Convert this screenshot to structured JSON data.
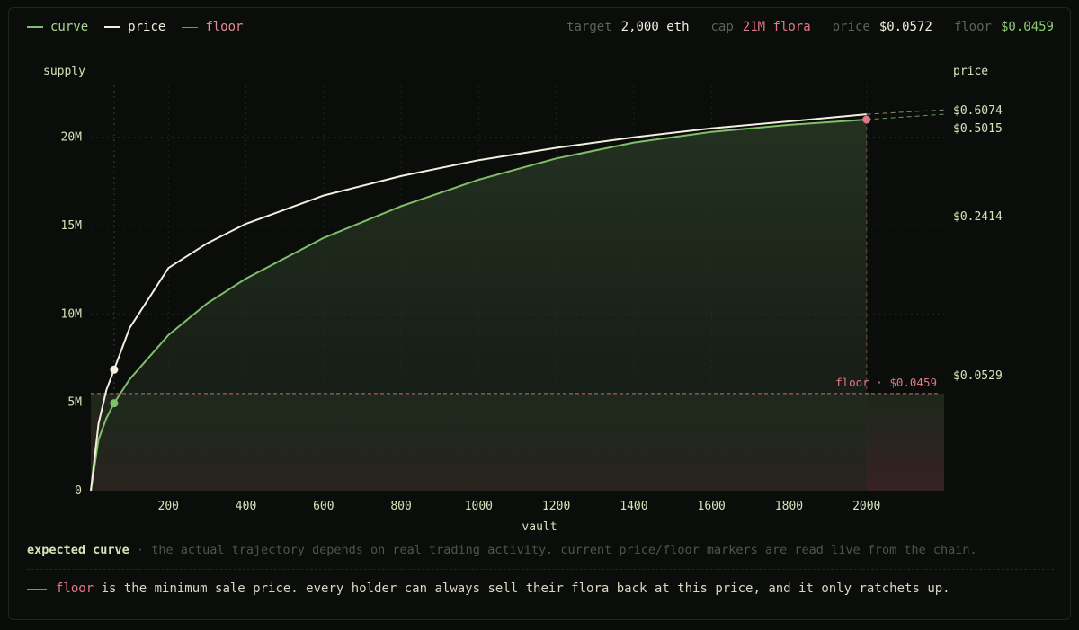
{
  "legend": {
    "curve": "curve",
    "price": "price",
    "floor": "floor"
  },
  "stats": {
    "target_label": "target",
    "target_value": "2,000 eth",
    "cap_label": "cap",
    "cap_value": "21M flora",
    "price_label": "price",
    "price_value": "$0.0572",
    "floor_label": "floor",
    "floor_value": "$0.0459"
  },
  "colors": {
    "curve": "#7fbf6a",
    "price": "#f2efe0",
    "floor": "#c86a7a",
    "axis_text": "#d6e3b8",
    "grid": "#1f251f"
  },
  "chart_data": {
    "type": "line",
    "xlabel": "vault",
    "ylabel": "supply",
    "y2label": "price",
    "xlim": [
      0,
      2200
    ],
    "ylim": [
      0,
      21000000
    ],
    "x_ticks": [
      200,
      400,
      600,
      800,
      1000,
      1200,
      1400,
      1600,
      1800,
      2000
    ],
    "y_ticks": [
      0,
      5000000,
      10000000,
      15000000,
      20000000
    ],
    "y_tick_labels": [
      "0",
      "5M",
      "10M",
      "15M",
      "20M"
    ],
    "y2_tick_labels": [
      "$0.6074",
      "$0.5015",
      "$0.2414",
      "$0.0529"
    ],
    "y2_tick_supply": [
      21500000,
      20500000,
      15500000,
      6500000
    ],
    "series": [
      {
        "name": "curve",
        "x": [
          0,
          20,
          40,
          60,
          100,
          200,
          300,
          400,
          600,
          800,
          1000,
          1200,
          1400,
          1600,
          1800,
          2000
        ],
        "values": [
          0,
          2900000,
          4100000,
          4950000,
          6300000,
          8800000,
          10600000,
          12000000,
          14300000,
          16100000,
          17600000,
          18800000,
          19700000,
          20300000,
          20700000,
          21000000
        ]
      },
      {
        "name": "price",
        "x": [
          0,
          20,
          40,
          60,
          100,
          200,
          300,
          400,
          600,
          800,
          1000,
          1200,
          1400,
          1600,
          1800,
          2000
        ],
        "values": [
          0,
          3800000,
          5700000,
          6850000,
          9200000,
          12600000,
          14000000,
          15100000,
          16700000,
          17800000,
          18700000,
          19400000,
          20000000,
          20500000,
          20900000,
          21300000
        ]
      }
    ],
    "floor": {
      "label": "floor · $0.0459",
      "supply": 5500000
    },
    "markers": [
      {
        "series": "price",
        "x": 60,
        "y": 6850000
      },
      {
        "series": "curve",
        "x": 60,
        "y": 4950000
      },
      {
        "series": "floor",
        "x": 2000,
        "y": 21000000
      }
    ]
  },
  "notes": {
    "expected_bold": "expected curve",
    "expected_text": "· the actual trajectory depends on real trading activity. current price/floor markers are read live from the chain.",
    "floor_word": "floor",
    "floor_text": "is the minimum sale price. every holder can always sell their flora back at this price, and it only ratchets up."
  }
}
